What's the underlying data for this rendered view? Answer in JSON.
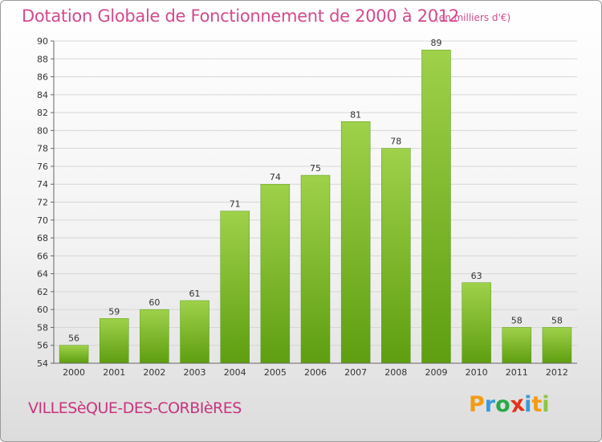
{
  "title": "Dotation Globale de Fonctionnement de 2000 à 2012",
  "subtitle": "(en milliers d'€)",
  "commune": "VILLESèQUE-DES-CORBIèRES",
  "logo": {
    "letters": [
      "P",
      "r",
      "o",
      "x",
      "i",
      "t",
      "i"
    ],
    "colors": [
      "#f39c12",
      "#3a9ad9",
      "#2ba84a",
      "#e2331b",
      "#3a9ad9",
      "#f39c12",
      "#8cc63f"
    ]
  },
  "chart_data": {
    "type": "bar",
    "categories": [
      "2000",
      "2001",
      "2002",
      "2003",
      "2004",
      "2005",
      "2006",
      "2007",
      "2008",
      "2009",
      "2010",
      "2011",
      "2012"
    ],
    "values": [
      56,
      59,
      60,
      61,
      71,
      74,
      75,
      81,
      78,
      89,
      63,
      58,
      58
    ],
    "data_labels": [
      "56",
      "59",
      "60",
      "61",
      "71",
      "74",
      "75",
      "81",
      "78",
      "89",
      "63",
      "58",
      "58"
    ],
    "yticks": [
      "54",
      "56",
      "58",
      "60",
      "62",
      "64",
      "66",
      "68",
      "70",
      "72",
      "74",
      "76",
      "78",
      "80",
      "82",
      "84",
      "86",
      "88",
      "90"
    ],
    "ylim": [
      54,
      90
    ],
    "grid": true,
    "bar_color_top": "#9fd14a",
    "bar_color_bottom": "#5e9e10",
    "grid_color": "#d6d6d6"
  }
}
